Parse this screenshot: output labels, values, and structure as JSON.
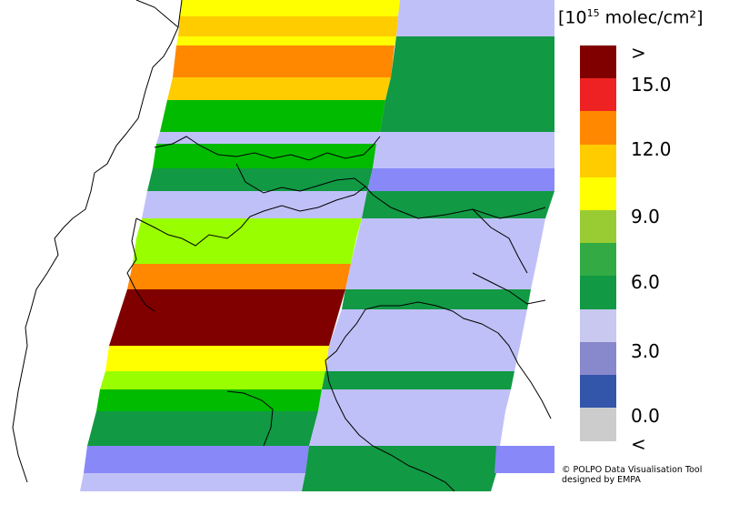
{
  "legend": {
    "unit_prefix": "[10",
    "unit_exponent": "15",
    "unit_suffix": " molec/cm²]",
    "labels": [
      ">",
      "15.0",
      "12.0",
      "9.0",
      "6.0",
      "3.0",
      "0.0",
      "<"
    ],
    "classes": [
      {
        "name": "above-max",
        "color": "#800000"
      },
      {
        "name": "15-16.5",
        "color": "#ee2222"
      },
      {
        "name": "13.5-15",
        "color": "#ff8800"
      },
      {
        "name": "12-13.5",
        "color": "#ffcc00"
      },
      {
        "name": "10.5-12",
        "color": "#ffff00"
      },
      {
        "name": "9-10.5",
        "color": "#99cc33"
      },
      {
        "name": "7.5-9",
        "color": "#33aa44"
      },
      {
        "name": "6-7.5",
        "color": "#119944"
      },
      {
        "name": "4.5-6",
        "color": "#c8c8f0"
      },
      {
        "name": "3-4.5",
        "color": "#8888cc"
      },
      {
        "name": "1.5-3",
        "color": "#3355aa"
      },
      {
        "name": "below-min",
        "color": "#cccccc"
      }
    ]
  },
  "credit": {
    "line1": "© POLPO Data Visualisation Tool",
    "line2": "designed by EMPA"
  },
  "map_colors": {
    "dark_red": "#800000",
    "orange": "#ff8800",
    "amber": "#ffcc00",
    "yellow": "#ffff00",
    "lime": "#99ff00",
    "green": "#00bb00",
    "dark_green": "#119944",
    "lavender": "#c0c0f8",
    "periwinkle": "#8888f8",
    "border": "#000000",
    "background": "#ffffff"
  }
}
